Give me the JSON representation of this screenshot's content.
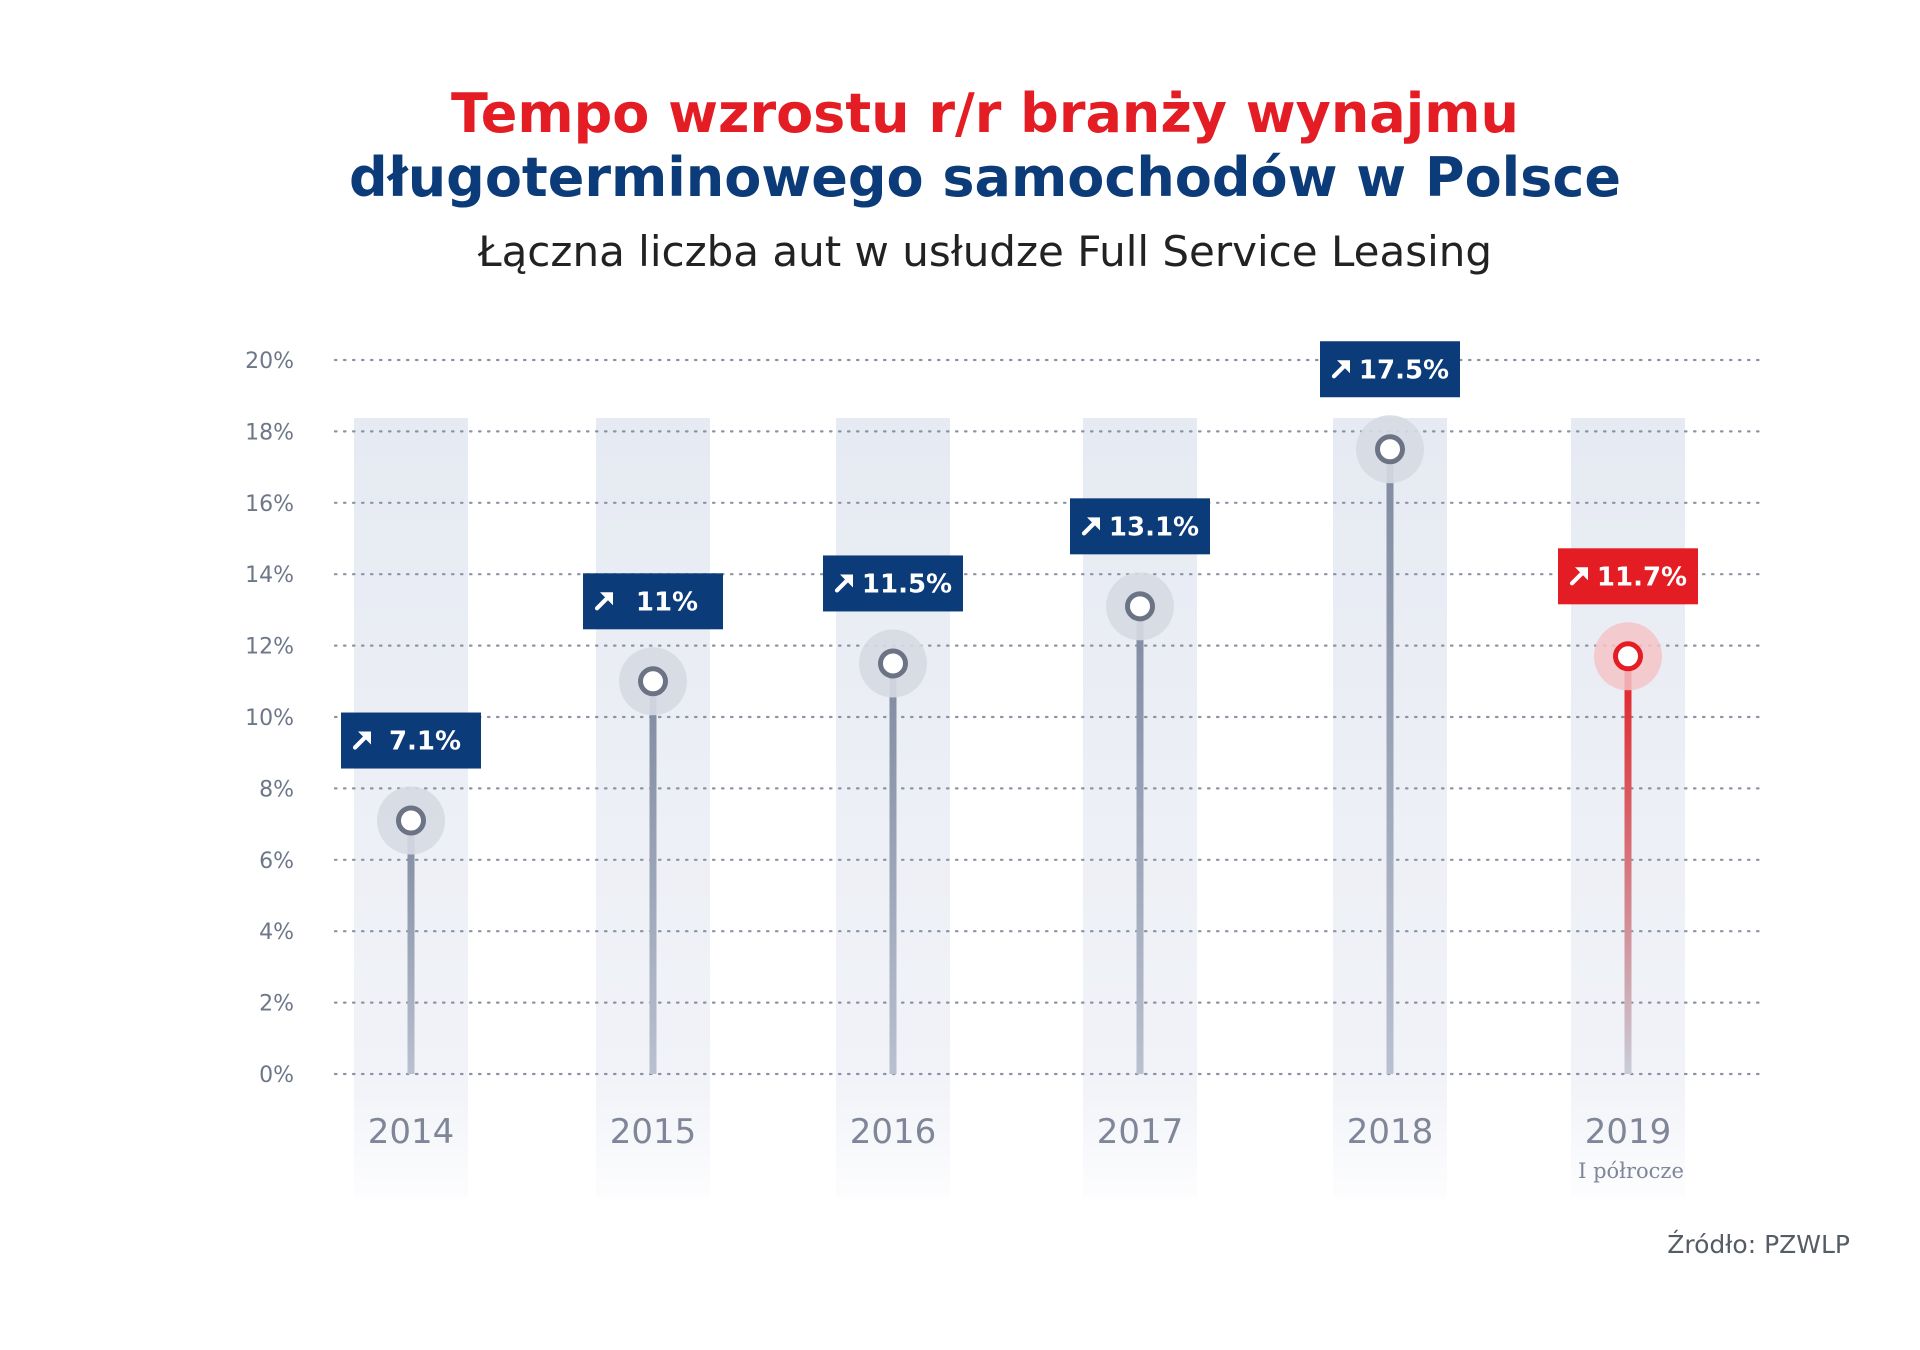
{
  "title_line1": "Tempo wzrostu r/r branży wynajmu",
  "title_line2": "długoterminowego samochodów w Polsce",
  "subtitle": "Łączna liczba aut w usłudze Full Service Leasing",
  "source": "Źródło: PZWLP",
  "colors": {
    "title_red": "#e31d23",
    "title_blue": "#0b3b78",
    "badge_blue": "#0b3b78",
    "badge_red": "#e31d23",
    "stem_gray": "#8e97ab",
    "column_bg": "#e8ecf3"
  },
  "chart_data": {
    "type": "lollipop",
    "categories": [
      "2014",
      "2015",
      "2016",
      "2017",
      "2018",
      "2019"
    ],
    "category_sublabels": [
      "",
      "",
      "",
      "",
      "",
      "I półrocze"
    ],
    "values": [
      7.1,
      11,
      11.5,
      13.1,
      17.5,
      11.7
    ],
    "data_labels": [
      "7.1%",
      "11%",
      "11.5%",
      "13.1%",
      "17.5%",
      "11.7%"
    ],
    "highlight_index": 5,
    "ylim": [
      0,
      20
    ],
    "yticks": [
      0,
      2,
      4,
      6,
      8,
      10,
      12,
      14,
      16,
      18,
      20
    ],
    "ytick_labels": [
      "0%",
      "2%",
      "4%",
      "6%",
      "8%",
      "10%",
      "12%",
      "14%",
      "16%",
      "18%",
      "20%"
    ],
    "grid": true,
    "legend": "none"
  }
}
